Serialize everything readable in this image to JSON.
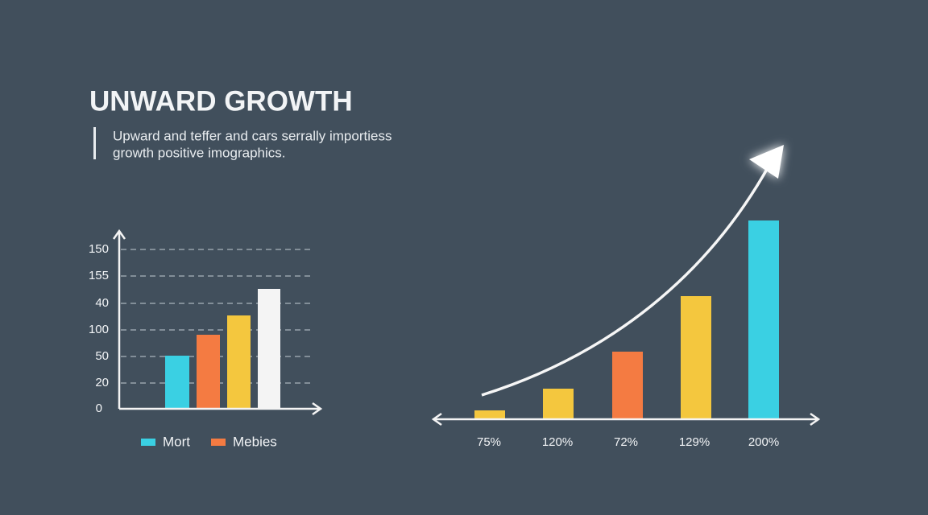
{
  "title": "UNWARD GROWTH",
  "subtitle": [
    "Upward and teffer and cars serrally importiess",
    "growth positive imographics."
  ],
  "left_chart": {
    "y_labels": [
      "150",
      "155",
      "40",
      "100",
      "50",
      "20",
      "0"
    ],
    "legend": [
      "Mort",
      "Mebies"
    ]
  },
  "right_chart": {
    "labels": [
      "75%",
      "120%",
      "72%",
      "129%",
      "200%"
    ]
  }
}
